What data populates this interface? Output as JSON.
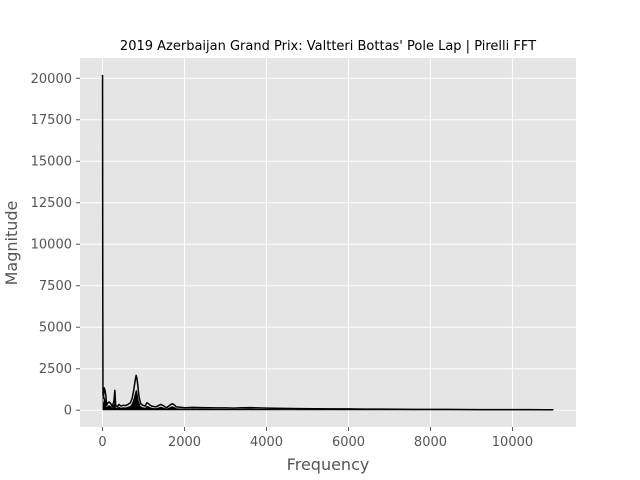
{
  "chart_data": {
    "type": "line",
    "title": "2019 Azerbaijan Grand Prix: Valtteri Bottas' Pole Lap | Pirelli FFT",
    "xlabel": "Frequency",
    "ylabel": "Magnitude",
    "xlim": [
      -550,
      11550
    ],
    "ylim": [
      -1010,
      21220
    ],
    "xticks": [
      0,
      2000,
      4000,
      6000,
      8000,
      10000
    ],
    "yticks": [
      0,
      2500,
      5000,
      7500,
      10000,
      12500,
      15000,
      17500,
      20000
    ],
    "grid": true,
    "background": "#e5e5e5",
    "line_color": "#000000",
    "series": [
      {
        "x": [
          0,
          5,
          10,
          20,
          40,
          60,
          80,
          100,
          130,
          160,
          200,
          240,
          280,
          300,
          320,
          360,
          400,
          450,
          500,
          560,
          620,
          680,
          720,
          760,
          790,
          820,
          840,
          860,
          880,
          900,
          930,
          980,
          1040,
          1080,
          1120,
          1160,
          1200,
          1300,
          1420,
          1500,
          1560,
          1640,
          1700,
          1760,
          1800,
          1900,
          2000,
          2200,
          2400,
          2600,
          2800,
          3000,
          3200,
          3400,
          3600,
          3800,
          4000,
          4400,
          4800,
          5200,
          5600,
          6000,
          6400,
          6800,
          7200,
          7600,
          8000,
          8400,
          8800,
          9200,
          9600,
          10000,
          10400,
          10800,
          11000
        ],
        "y": [
          20200,
          8000,
          1000,
          700,
          1350,
          1200,
          900,
          300,
          450,
          500,
          400,
          200,
          600,
          1200,
          300,
          200,
          350,
          250,
          300,
          280,
          350,
          450,
          700,
          1200,
          1700,
          2100,
          1900,
          1500,
          1000,
          700,
          400,
          300,
          250,
          450,
          400,
          300,
          250,
          200,
          350,
          250,
          150,
          300,
          400,
          300,
          200,
          180,
          150,
          170,
          160,
          150,
          140,
          140,
          130,
          150,
          160,
          140,
          130,
          110,
          100,
          90,
          85,
          80,
          70,
          65,
          60,
          55,
          50,
          50,
          45,
          40,
          40,
          40,
          35,
          30,
          30
        ]
      }
    ]
  }
}
